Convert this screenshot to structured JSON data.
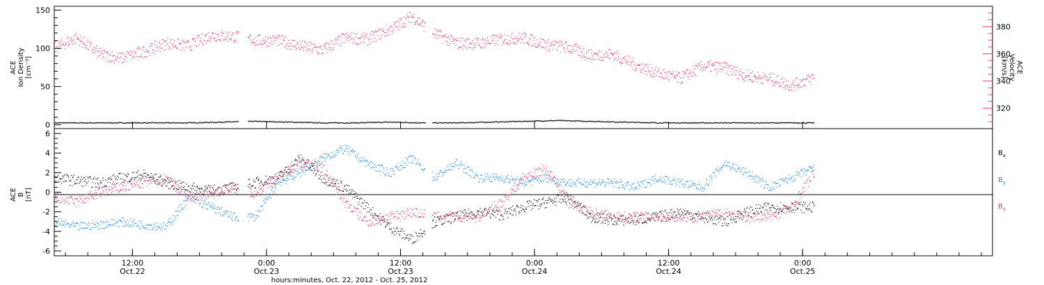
{
  "chart_data": [
    {
      "type": "scatter",
      "panel": "top",
      "left_axis": {
        "label_lines": [
          "ACE",
          "Ion Density",
          "[cm⁻³]"
        ],
        "ylim": [
          -5,
          155
        ],
        "ticks": [
          0,
          50,
          100,
          150
        ],
        "tick_labels": [
          "0",
          "50",
          "100",
          "150"
        ]
      },
      "right_axis": {
        "label_lines": [
          "ACE",
          "Velocity",
          "[km/s]"
        ],
        "color": "#e8386b",
        "ylim": [
          305,
          395
        ],
        "ticks": [
          320,
          340,
          360,
          380
        ],
        "tick_labels": [
          "320",
          "340",
          "360",
          "380"
        ]
      },
      "series": [
        {
          "color": "#000000",
          "axis": "left",
          "x_hours": [
            0,
            3,
            6,
            9,
            12,
            15,
            18,
            21,
            24,
            27,
            30,
            33,
            36,
            39,
            42,
            45,
            48,
            51,
            54,
            57,
            60,
            63,
            66,
            68
          ],
          "values": [
            3,
            3,
            3,
            3,
            3,
            4,
            5,
            4,
            3,
            3,
            4,
            3,
            3,
            4,
            5,
            6,
            5,
            4,
            3,
            3,
            3,
            3,
            3,
            3
          ]
        },
        {
          "color": "#e8386b",
          "axis": "right",
          "x_hours": [
            0,
            2,
            4,
            6,
            8,
            10,
            12,
            14,
            16,
            18,
            20,
            22,
            24,
            26,
            28,
            30,
            32,
            34,
            36,
            38,
            40,
            42,
            44,
            46,
            48,
            50,
            52,
            54,
            56,
            58,
            60,
            62,
            64,
            66,
            68
          ],
          "values": [
            365,
            372,
            360,
            357,
            362,
            368,
            366,
            374,
            373,
            370,
            370,
            366,
            363,
            372,
            371,
            378,
            388,
            375,
            368,
            368,
            371,
            372,
            367,
            365,
            359,
            360,
            352,
            346,
            342,
            351,
            350,
            344,
            342,
            337,
            343
          ]
        }
      ]
    },
    {
      "type": "scatter",
      "panel": "bottom",
      "left_axis": {
        "label_lines": [
          "ACE",
          "B",
          "[nT]"
        ],
        "ylim": [
          -6.5,
          6.5
        ],
        "ticks": [
          -6,
          -4,
          -2,
          0,
          2,
          4,
          6
        ],
        "tick_labels": [
          "-6",
          "-4",
          "-2",
          "0",
          "2",
          "4",
          "6"
        ]
      },
      "legend": {
        "placement": "right",
        "entries": [
          {
            "label": "B",
            "sub": "x",
            "color": "#000000"
          },
          {
            "label": "B",
            "sub": "y",
            "color": "#1e88e5"
          },
          {
            "label": "B",
            "sub": "z",
            "color": "#e8386b"
          }
        ]
      },
      "series": [
        {
          "label": "Bx",
          "color": "#000000",
          "x_hours": [
            0,
            2,
            4,
            6,
            8,
            10,
            12,
            14,
            16,
            18,
            20,
            22,
            24,
            26,
            28,
            30,
            32,
            34,
            36,
            38,
            40,
            42,
            44,
            46,
            48,
            50,
            52,
            54,
            56,
            58,
            60,
            62,
            64,
            66,
            68
          ],
          "values": [
            1.5,
            1.2,
            1.0,
            1.5,
            1.8,
            1.0,
            0.5,
            0.2,
            0.5,
            1.0,
            1.5,
            3.5,
            1.5,
            0.5,
            -1.5,
            -3.5,
            -4.8,
            -3.0,
            -2.5,
            -2.0,
            -2.3,
            -1.5,
            -1.0,
            -0.5,
            -2.5,
            -2.8,
            -2.8,
            -2.5,
            -2.0,
            -2.5,
            -3.0,
            -2.0,
            -1.5,
            -1.5,
            -1.5
          ]
        },
        {
          "label": "By",
          "color": "#1e88e5",
          "x_hours": [
            0,
            2,
            4,
            6,
            8,
            10,
            12,
            14,
            16,
            18,
            20,
            22,
            24,
            26,
            28,
            30,
            32,
            34,
            36,
            38,
            40,
            42,
            44,
            46,
            48,
            50,
            52,
            54,
            56,
            58,
            60,
            62,
            64,
            66,
            68
          ],
          "values": [
            -3.0,
            -3.5,
            -3.3,
            -3.0,
            -3.3,
            -3.5,
            -0.5,
            -1.5,
            -2.5,
            -2.5,
            1.0,
            2.0,
            3.5,
            4.5,
            3.0,
            2.0,
            3.5,
            1.5,
            3.0,
            1.5,
            1.5,
            1.0,
            1.5,
            1.0,
            1.0,
            1.0,
            0.5,
            1.5,
            1.0,
            0.5,
            3.0,
            2.0,
            0.5,
            1.5,
            2.5
          ]
        },
        {
          "label": "Bz",
          "color": "#e8386b",
          "x_hours": [
            0,
            2,
            4,
            6,
            8,
            10,
            12,
            14,
            16,
            18,
            20,
            22,
            24,
            26,
            28,
            30,
            32,
            34,
            36,
            38,
            40,
            42,
            44,
            46,
            48,
            50,
            52,
            54,
            56,
            58,
            60,
            62,
            64,
            66,
            68
          ],
          "values": [
            -0.5,
            -1.0,
            0.0,
            0.5,
            1.0,
            1.5,
            -0.5,
            0.0,
            0.5,
            0.0,
            1.5,
            3.0,
            2.5,
            -1.0,
            -3.0,
            -2.5,
            -2.0,
            -2.5,
            -2.5,
            -2.5,
            -1.0,
            1.5,
            2.5,
            -1.0,
            -2.0,
            -2.5,
            -2.5,
            -2.5,
            -2.5,
            -2.5,
            -2.0,
            -2.5,
            -2.5,
            -1.5,
            2.0
          ]
        }
      ]
    }
  ],
  "x_axis": {
    "xlim_hours": [
      0,
      84
    ],
    "major_ticks_hours": [
      7,
      31,
      55
    ],
    "minor_ticks_hours": [
      19,
      43,
      67
    ],
    "labels": [
      {
        "x_hours": 7,
        "time": "12:00",
        "date": "Oct.22"
      },
      {
        "x_hours": 19,
        "time": "0:00",
        "date": "Oct.23"
      },
      {
        "x_hours": 31,
        "time": "12:00",
        "date": "Oct.23"
      },
      {
        "x_hours": 43,
        "time": "0:00",
        "date": "Oct.24"
      },
      {
        "x_hours": 55,
        "time": "12:00",
        "date": "Oct.24"
      },
      {
        "x_hours": 67,
        "time": "0:00",
        "date": "Oct.25"
      }
    ],
    "title": "hours:minutes, Oct. 22, 2012 - Oct. 25, 2012"
  },
  "colors": {
    "black": "#000000",
    "pink": "#e8386b",
    "blue": "#1e88e5"
  }
}
